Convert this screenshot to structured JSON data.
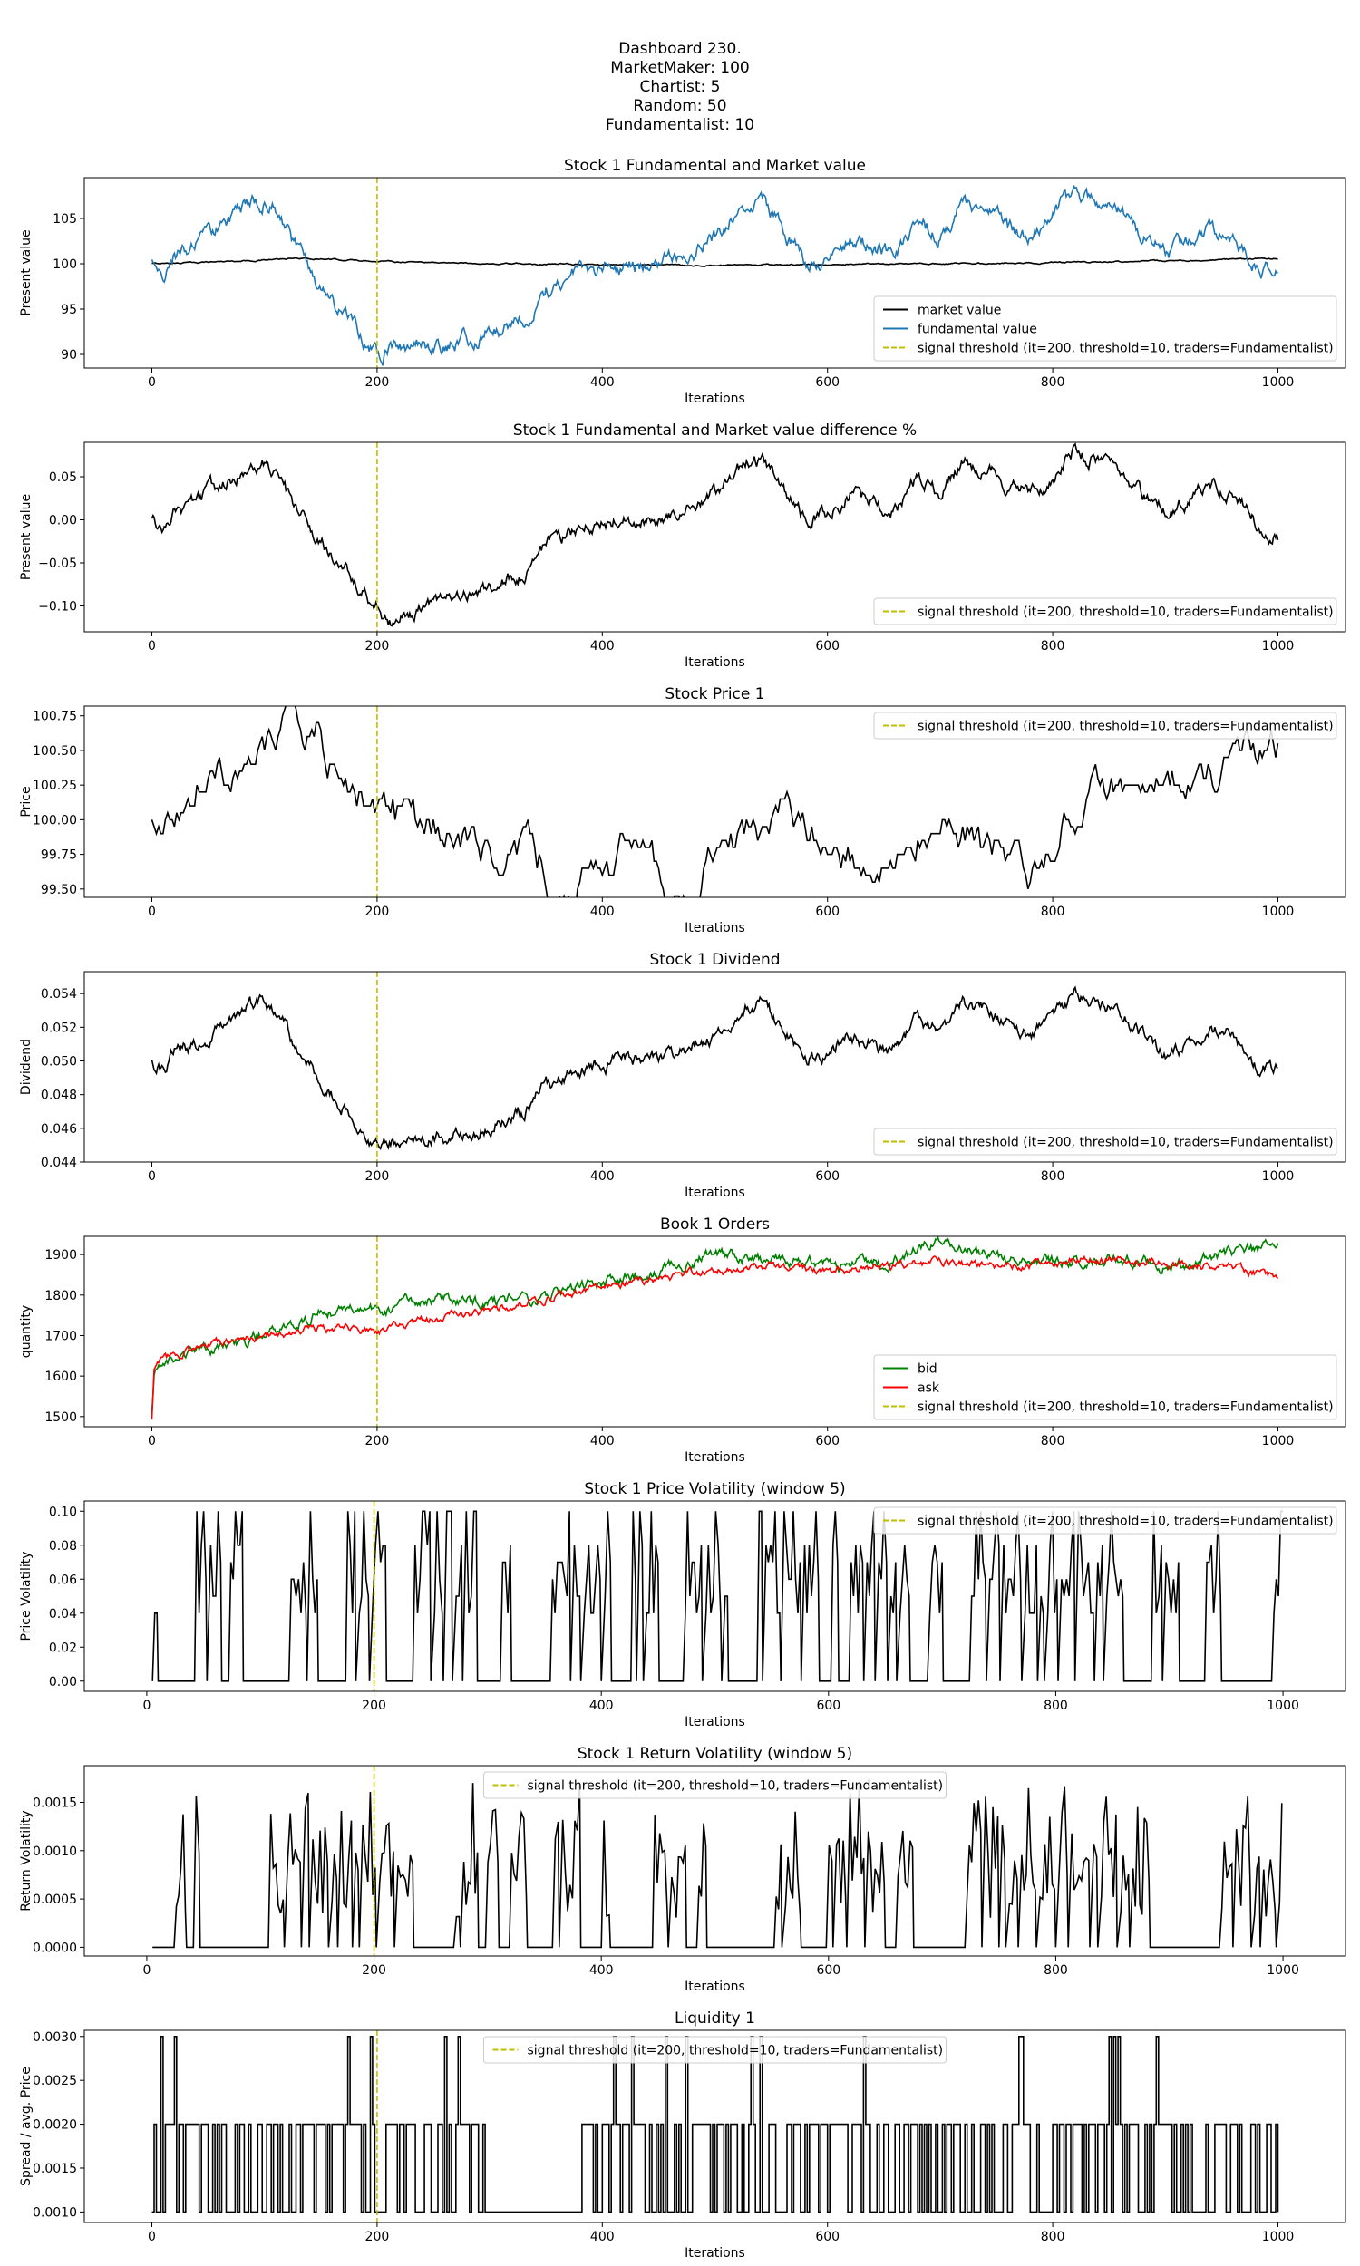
{
  "header": {
    "lines": [
      "Dashboard 230.",
      "MarketMaker: 100",
      "Chartist: 5",
      "Random: 50",
      "Fundamentalist: 10"
    ]
  },
  "signal_label": "signal threshold (it=200, threshold=10, traders=Fundamentalist)",
  "colors": {
    "black": "#000000",
    "blue": "#1f77b4",
    "green": "#008000",
    "red": "#ff0000",
    "signal": "#bfbf00"
  },
  "chart_data": [
    {
      "type": "line",
      "title": "Stock 1 Fundamental and Market value",
      "xlabel": "Iterations",
      "ylabel": "Present value",
      "xlim": [
        -60,
        1060
      ],
      "ylim": [
        88.5,
        109.5
      ],
      "xticks": [
        0,
        200,
        400,
        600,
        800,
        1000
      ],
      "yticks": [
        90,
        95,
        100,
        105
      ],
      "ytick_labels": [
        "90",
        "95",
        "100",
        "105"
      ],
      "signal_x": 200,
      "legend": "lower-right",
      "series": [
        {
          "name": "market value",
          "color": "black",
          "x": [
            0,
            50,
            100,
            130,
            200,
            300,
            400,
            500,
            600,
            700,
            800,
            900,
            1000
          ],
          "y": [
            100,
            100.2,
            100.4,
            100.6,
            100.3,
            100,
            99.9,
            99.8,
            99.9,
            100,
            100.1,
            100.3,
            100.6
          ],
          "noise": 0.05
        },
        {
          "name": "fundamental value",
          "color": "blue",
          "x": [
            0,
            10,
            20,
            40,
            60,
            80,
            100,
            110,
            130,
            160,
            180,
            200,
            210,
            230,
            260,
            290,
            330,
            350,
            380,
            410,
            440,
            470,
            500,
            520,
            540,
            560,
            580,
            600,
            620,
            640,
            660,
            680,
            700,
            720,
            740,
            760,
            780,
            800,
            820,
            840,
            860,
            880,
            900,
            920,
            940,
            960,
            980,
            1000
          ],
          "y": [
            100,
            99,
            101,
            102,
            104,
            106,
            107,
            106,
            101,
            96,
            93,
            90,
            90.5,
            91,
            91,
            92,
            94,
            97,
            99,
            100,
            100,
            101,
            103,
            106,
            107,
            104,
            100,
            101,
            103,
            102,
            101,
            105,
            103,
            107,
            106,
            104,
            103,
            105,
            108,
            107,
            106,
            103,
            101,
            102,
            104,
            103,
            100,
            98.5
          ],
          "noise": 0.6
        }
      ]
    },
    {
      "type": "line",
      "title": "Stock 1 Fundamental and Market value difference %",
      "xlabel": "Iterations",
      "ylabel": "Present value",
      "xlim": [
        -60,
        1060
      ],
      "ylim": [
        -0.13,
        0.09
      ],
      "xticks": [
        0,
        200,
        400,
        600,
        800,
        1000
      ],
      "yticks": [
        -0.1,
        -0.05,
        0.0,
        0.05
      ],
      "ytick_labels": [
        "−0.10",
        "−0.05",
        "0.00",
        "0.05"
      ],
      "signal_x": 200,
      "legend": "lower-right",
      "series": [
        {
          "name": "",
          "color": "black",
          "x": [
            0,
            10,
            20,
            40,
            60,
            80,
            100,
            110,
            130,
            160,
            180,
            200,
            210,
            230,
            260,
            290,
            330,
            350,
            380,
            410,
            440,
            470,
            500,
            520,
            540,
            560,
            580,
            600,
            620,
            640,
            660,
            680,
            700,
            720,
            740,
            760,
            780,
            800,
            820,
            840,
            860,
            880,
            900,
            920,
            940,
            960,
            980,
            1000
          ],
          "y": [
            0,
            -0.01,
            0.01,
            0.02,
            0.04,
            0.05,
            0.06,
            0.05,
            0.01,
            -0.04,
            -0.07,
            -0.1,
            -0.12,
            -0.11,
            -0.1,
            -0.08,
            -0.06,
            -0.03,
            -0.01,
            0,
            0,
            0.01,
            0.03,
            0.06,
            0.07,
            0.04,
            0,
            0.01,
            0.03,
            0.02,
            0.01,
            0.05,
            0.03,
            0.07,
            0.06,
            0.04,
            0.03,
            0.05,
            0.08,
            0.07,
            0.06,
            0.03,
            0.01,
            0.02,
            0.04,
            0.03,
            0,
            -0.02
          ],
          "noise": 0.006
        }
      ]
    },
    {
      "type": "line",
      "title": "Stock Price 1",
      "xlabel": "Iterations",
      "ylabel": "Price",
      "xlim": [
        -60,
        1060
      ],
      "ylim": [
        99.44,
        100.82
      ],
      "xticks": [
        0,
        200,
        400,
        600,
        800,
        1000
      ],
      "yticks": [
        99.5,
        99.75,
        100,
        100.25,
        100.5,
        100.75
      ],
      "ytick_labels": [
        "99.50",
        "99.75",
        "100.00",
        "100.25",
        "100.50",
        "100.75"
      ],
      "signal_x": 200,
      "legend": "upper-right",
      "series": [
        {
          "name": "",
          "color": "black",
          "step": true,
          "x": [
            0,
            20,
            40,
            60,
            80,
            100,
            110,
            130,
            150,
            170,
            190,
            200,
            230,
            260,
            300,
            340,
            360,
            380,
            400,
            420,
            440,
            460,
            480,
            500,
            520,
            540,
            560,
            600,
            640,
            660,
            700,
            720,
            760,
            780,
            800,
            820,
            860,
            900,
            940,
            960,
            980,
            1000
          ],
          "y": [
            100,
            100,
            100.2,
            100.2,
            100.3,
            100.5,
            100.7,
            100.8,
            100.6,
            100.3,
            100.1,
            100,
            100,
            99.9,
            99.8,
            99.7,
            99.5,
            99.5,
            99.6,
            99.9,
            99.7,
            99.5,
            99.5,
            99.8,
            99.8,
            99.9,
            100,
            99.8,
            99.8,
            99.9,
            100,
            99.9,
            99.7,
            99.7,
            99.8,
            100.1,
            100.2,
            100.2,
            100.3,
            100.4,
            100.5,
            100.5
          ],
          "noise": 0.1,
          "q": 0.05
        }
      ]
    },
    {
      "type": "line",
      "title": "Stock 1 Dividend",
      "xlabel": "Iterations",
      "ylabel": "Dividend",
      "xlim": [
        -60,
        1060
      ],
      "ylim": [
        0.044,
        0.0553
      ],
      "xticks": [
        0,
        200,
        400,
        600,
        800,
        1000
      ],
      "yticks": [
        0.044,
        0.046,
        0.048,
        0.05,
        0.052,
        0.054
      ],
      "ytick_labels": [
        "0.044",
        "0.046",
        "0.048",
        "0.050",
        "0.052",
        "0.054"
      ],
      "signal_x": 200,
      "legend": "lower-right",
      "series": [
        {
          "name": "",
          "color": "black",
          "x": [
            0,
            10,
            20,
            40,
            60,
            80,
            100,
            110,
            130,
            160,
            180,
            200,
            210,
            230,
            260,
            290,
            330,
            350,
            380,
            410,
            440,
            470,
            500,
            520,
            540,
            560,
            580,
            600,
            620,
            640,
            660,
            680,
            700,
            720,
            740,
            760,
            780,
            800,
            820,
            840,
            860,
            880,
            900,
            920,
            940,
            960,
            980,
            1000
          ],
          "y": [
            0.05,
            0.0495,
            0.0505,
            0.051,
            0.052,
            0.053,
            0.0535,
            0.053,
            0.0505,
            0.048,
            0.0465,
            0.0448,
            0.045,
            0.0455,
            0.0455,
            0.046,
            0.047,
            0.0485,
            0.0495,
            0.05,
            0.05,
            0.0505,
            0.0515,
            0.053,
            0.0535,
            0.052,
            0.05,
            0.0505,
            0.0515,
            0.051,
            0.0505,
            0.0525,
            0.0515,
            0.0535,
            0.053,
            0.052,
            0.0515,
            0.0525,
            0.054,
            0.0535,
            0.053,
            0.0515,
            0.0505,
            0.051,
            0.052,
            0.0515,
            0.05,
            0.0493
          ],
          "noise": 0.0003
        }
      ]
    },
    {
      "type": "line",
      "title": "Book 1 Orders",
      "xlabel": "Iterations",
      "ylabel": "quantity",
      "xlim": [
        -60,
        1060
      ],
      "ylim": [
        1475,
        1945
      ],
      "xticks": [
        0,
        200,
        400,
        600,
        800,
        1000
      ],
      "yticks": [
        1500,
        1600,
        1700,
        1800,
        1900
      ],
      "ytick_labels": [
        "1500",
        "1600",
        "1700",
        "1800",
        "1900"
      ],
      "signal_x": 200,
      "legend": "lower-right",
      "series": [
        {
          "name": "bid",
          "color": "green",
          "x": [
            0,
            2,
            5,
            20,
            50,
            100,
            150,
            200,
            250,
            300,
            350,
            400,
            450,
            500,
            550,
            600,
            650,
            700,
            750,
            800,
            850,
            900,
            950,
            1000
          ],
          "y": [
            1500,
            1600,
            1620,
            1640,
            1660,
            1700,
            1760,
            1760,
            1790,
            1780,
            1800,
            1830,
            1860,
            1900,
            1880,
            1870,
            1880,
            1930,
            1890,
            1880,
            1890,
            1870,
            1900,
            1920
          ],
          "noise": 10
        },
        {
          "name": "ask",
          "color": "red",
          "x": [
            0,
            2,
            5,
            20,
            50,
            100,
            150,
            200,
            250,
            300,
            350,
            400,
            450,
            500,
            550,
            600,
            650,
            700,
            750,
            800,
            850,
            900,
            950,
            1000
          ],
          "y": [
            1495,
            1610,
            1630,
            1650,
            1680,
            1700,
            1720,
            1710,
            1740,
            1760,
            1790,
            1820,
            1840,
            1860,
            1870,
            1860,
            1870,
            1880,
            1870,
            1880,
            1890,
            1880,
            1870,
            1845
          ],
          "noise": 7
        }
      ]
    },
    {
      "type": "line",
      "title": "Stock 1 Price Volatility (window 5)",
      "xlabel": "Iterations",
      "ylabel": "Price Volatility",
      "xlim": [
        -55,
        1055
      ],
      "ylim": [
        -0.006,
        0.106
      ],
      "xticks": [
        0,
        200,
        400,
        600,
        800,
        1000
      ],
      "yticks": [
        0,
        0.02,
        0.04,
        0.06,
        0.08,
        0.1
      ],
      "ytick_labels": [
        "0.00",
        "0.02",
        "0.04",
        "0.06",
        "0.08",
        "0.10"
      ],
      "signal_x": 200,
      "legend": "upper-right",
      "series": [
        {
          "name": "",
          "color": "black",
          "spiky": true,
          "seed": 11,
          "xmin": 5,
          "xmax": 1000,
          "vmax": 0.1,
          "zeroFrac": 0.35,
          "levels": [
            0,
            0.04,
            0.05,
            0.06,
            0.07,
            0.08,
            0.1
          ]
        }
      ]
    },
    {
      "type": "line",
      "title": "Stock 1 Return Volatility (window 5)",
      "xlabel": "Iterations",
      "ylabel": "Return Volatility",
      "xlim": [
        -55,
        1055
      ],
      "ylim": [
        -9e-05,
        0.00188
      ],
      "xticks": [
        0,
        200,
        400,
        600,
        800,
        1000
      ],
      "yticks": [
        0,
        0.0005,
        0.001,
        0.0015
      ],
      "ytick_labels": [
        "0.0000",
        "0.0005",
        "0.0010",
        "0.0015"
      ],
      "signal_x": 200,
      "legend": "upper-center",
      "series": [
        {
          "name": "",
          "color": "black",
          "spiky": true,
          "smooth": true,
          "seed": 23,
          "xmin": 5,
          "xmax": 1000,
          "vmax": 0.0017,
          "zeroFrac": 0.3,
          "levels": [
            0,
            0.0005,
            0.0007,
            0.0009,
            0.0011,
            0.0013,
            0.0016
          ]
        }
      ]
    },
    {
      "type": "line",
      "title": "Liquidity 1",
      "xlabel": "Iterations",
      "ylabel": "Spread / avg. Price",
      "xlim": [
        -60,
        1060
      ],
      "ylim": [
        0.00088,
        0.00307
      ],
      "xticks": [
        0,
        200,
        400,
        600,
        800,
        1000
      ],
      "yticks": [
        0.001,
        0.0015,
        0.002,
        0.0025,
        0.003
      ],
      "ytick_labels": [
        "0.0010",
        "0.0015",
        "0.0020",
        "0.0025",
        "0.0030"
      ],
      "signal_x": 200,
      "legend": "upper-center",
      "series": [
        {
          "name": "",
          "color": "black",
          "binary": true,
          "seed": 37,
          "xmin": 0,
          "xmax": 1000,
          "levels": [
            0.001,
            0.002,
            0.003
          ]
        }
      ]
    }
  ]
}
